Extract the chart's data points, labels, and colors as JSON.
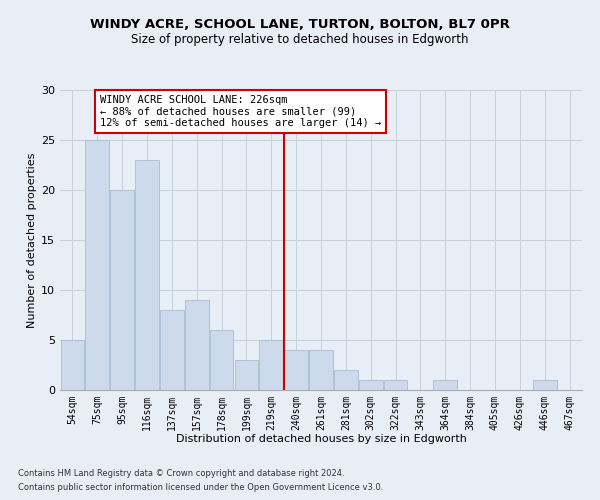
{
  "title_line1": "WINDY ACRE, SCHOOL LANE, TURTON, BOLTON, BL7 0PR",
  "title_line2": "Size of property relative to detached houses in Edgworth",
  "xlabel": "Distribution of detached houses by size in Edgworth",
  "ylabel": "Number of detached properties",
  "categories": [
    "54sqm",
    "75sqm",
    "95sqm",
    "116sqm",
    "137sqm",
    "157sqm",
    "178sqm",
    "199sqm",
    "219sqm",
    "240sqm",
    "261sqm",
    "281sqm",
    "302sqm",
    "322sqm",
    "343sqm",
    "364sqm",
    "384sqm",
    "405sqm",
    "426sqm",
    "446sqm",
    "467sqm"
  ],
  "values": [
    5,
    25,
    20,
    23,
    8,
    9,
    6,
    3,
    5,
    4,
    4,
    2,
    1,
    1,
    0,
    1,
    0,
    0,
    0,
    1,
    0
  ],
  "bar_color": "#ccdaec",
  "bar_edgecolor": "#a8bcd4",
  "grid_color": "#c8d0dc",
  "background_color": "#e8eef6",
  "redline_x": 8.5,
  "annotation_text": "WINDY ACRE SCHOOL LANE: 226sqm\n← 88% of detached houses are smaller (99)\n12% of semi-detached houses are larger (14) →",
  "annotation_box_color": "#ffffff",
  "annotation_box_edgecolor": "#cc0000",
  "redline_color": "#cc0000",
  "footer_line1": "Contains HM Land Registry data © Crown copyright and database right 2024.",
  "footer_line2": "Contains public sector information licensed under the Open Government Licence v3.0.",
  "ylim": [
    0,
    30
  ],
  "yticks": [
    0,
    5,
    10,
    15,
    20,
    25,
    30
  ],
  "title1_fontsize": 9.5,
  "title2_fontsize": 8.5,
  "tick_fontsize": 7,
  "ylabel_fontsize": 8,
  "xlabel_fontsize": 8,
  "annot_fontsize": 7.5
}
